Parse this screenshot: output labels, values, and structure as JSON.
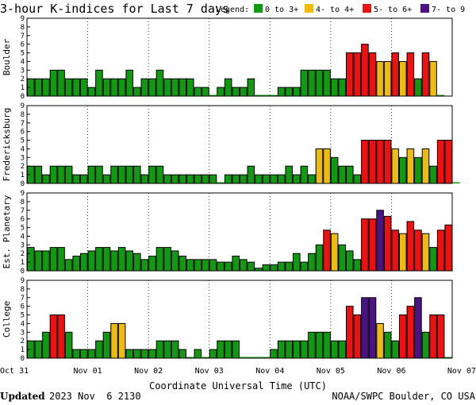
{
  "chart_data": {
    "type": "bar",
    "title": "3-hour K-indices for Last 7 days",
    "legend": {
      "label": "Legend:",
      "placement": "top-right",
      "items": [
        {
          "label": "0 to 3+",
          "color": "#119911"
        },
        {
          "label": "4- to 4+",
          "color": "#eebb11"
        },
        {
          "label": "5- to 6+",
          "color": "#ee1111"
        },
        {
          "label": "7- to 9",
          "color": "#4c1483"
        }
      ]
    },
    "xlabel": "Coordinate Universal Time (UTC)",
    "x_ticks": [
      "Oct 31",
      "Nov 01",
      "Nov 02",
      "Nov 03",
      "Nov 04",
      "Nov 05",
      "Nov 06",
      "Nov 07"
    ],
    "ylim": [
      0,
      9
    ],
    "y_ticks": [
      0,
      1,
      2,
      3,
      4,
      5,
      6,
      7,
      8,
      9
    ],
    "grid": true,
    "panels": [
      {
        "name": "Boulder",
        "values": [
          2,
          2,
          2,
          3,
          3,
          2,
          2,
          2,
          1,
          3,
          2,
          2,
          2,
          3,
          1,
          2,
          2,
          3,
          2,
          2,
          2,
          2,
          1,
          1,
          0,
          1,
          2,
          1,
          1,
          2,
          0,
          0,
          0,
          1,
          1,
          1,
          3,
          3,
          3,
          3,
          2,
          2,
          5,
          5,
          6,
          5,
          4,
          4,
          5,
          4,
          5,
          2,
          5,
          4,
          0
        ]
      },
      {
        "name": "Fredericksburg",
        "values": [
          2,
          2,
          1,
          2,
          2,
          2,
          1,
          1,
          2,
          2,
          1,
          2,
          2,
          2,
          2,
          1,
          2,
          2,
          1,
          1,
          1,
          1,
          1,
          1,
          1,
          0,
          1,
          1,
          1,
          2,
          1,
          1,
          1,
          1,
          2,
          1,
          2,
          1,
          4,
          4,
          3,
          2,
          2,
          1,
          5,
          5,
          5,
          5,
          4,
          3,
          4,
          3,
          4,
          2,
          5,
          5,
          0
        ]
      },
      {
        "name": "Est. Planetary",
        "values": [
          2.7,
          2.3,
          2.3,
          2.7,
          2.7,
          1.3,
          1.7,
          2.0,
          2.3,
          2.7,
          2.7,
          2.3,
          2.7,
          2.3,
          2.0,
          1.3,
          1.7,
          2.7,
          2.7,
          2.3,
          1.7,
          1.3,
          1.3,
          1.3,
          1.3,
          1.0,
          1.0,
          1.7,
          1.3,
          1.0,
          0.3,
          0.7,
          0.7,
          1.0,
          1.0,
          2.0,
          1.0,
          2.0,
          3.0,
          4.7,
          4.3,
          3.0,
          2.3,
          1.3,
          6.0,
          6.0,
          7.0,
          6.3,
          4.7,
          4.3,
          5.7,
          4.7,
          4.3,
          2.7,
          4.7,
          5.3
        ]
      },
      {
        "name": "College",
        "values": [
          2,
          2,
          3,
          5,
          5,
          3,
          1,
          1,
          1,
          2,
          3,
          4,
          4,
          1,
          1,
          1,
          1,
          2,
          2,
          2,
          1,
          0,
          1,
          0,
          1,
          2,
          2,
          2,
          0,
          0,
          0,
          0,
          1,
          2,
          2,
          2,
          2,
          3,
          3,
          3,
          2,
          2,
          6,
          5,
          7,
          7,
          4,
          3,
          2,
          5,
          6,
          7,
          3,
          5,
          5,
          0
        ]
      }
    ]
  },
  "footer": {
    "updated_label": "Updated",
    "updated_value": "2023 Nov  6 2130",
    "source": "NOAA/SWPC Boulder, CO USA"
  }
}
